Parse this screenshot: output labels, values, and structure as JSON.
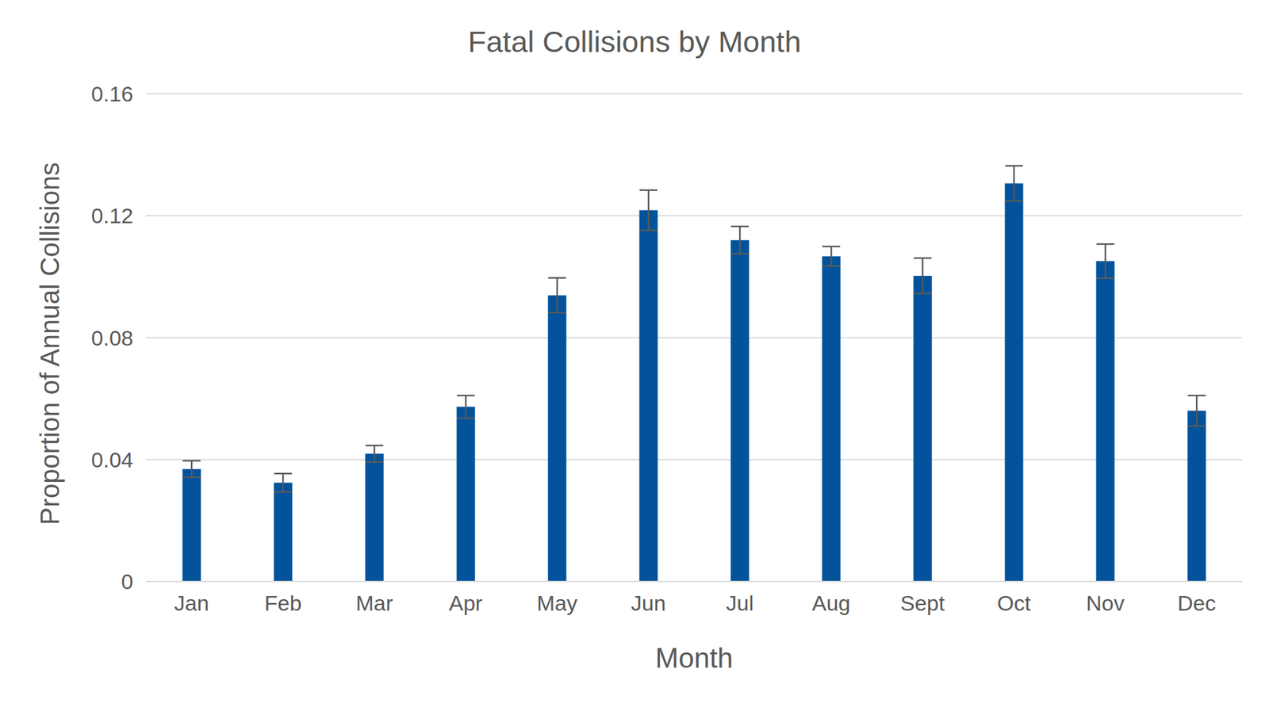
{
  "chart_data": {
    "type": "bar",
    "title": "Fatal Collisions by Month",
    "x_label": "Month",
    "y_label": "Proportion of Annual Collisions",
    "categories": [
      "Jan",
      "Feb",
      "Mar",
      "Apr",
      "May",
      "Jun",
      "Jul",
      "Aug",
      "Sept",
      "Oct",
      "Nov",
      "Dec"
    ],
    "values": [
      0.0369,
      0.0324,
      0.0419,
      0.0573,
      0.0939,
      0.1218,
      0.112,
      0.1067,
      0.1003,
      0.1306,
      0.1051,
      0.056
    ],
    "errors": [
      0.0027,
      0.003,
      0.0027,
      0.0037,
      0.0057,
      0.0066,
      0.0045,
      0.0032,
      0.0058,
      0.0058,
      0.0056,
      0.005
    ],
    "color": "#02539c",
    "ylim": [
      0,
      0.16
    ],
    "yticks": [
      0,
      0.04,
      0.08,
      0.12,
      0.16
    ],
    "grid": true
  }
}
